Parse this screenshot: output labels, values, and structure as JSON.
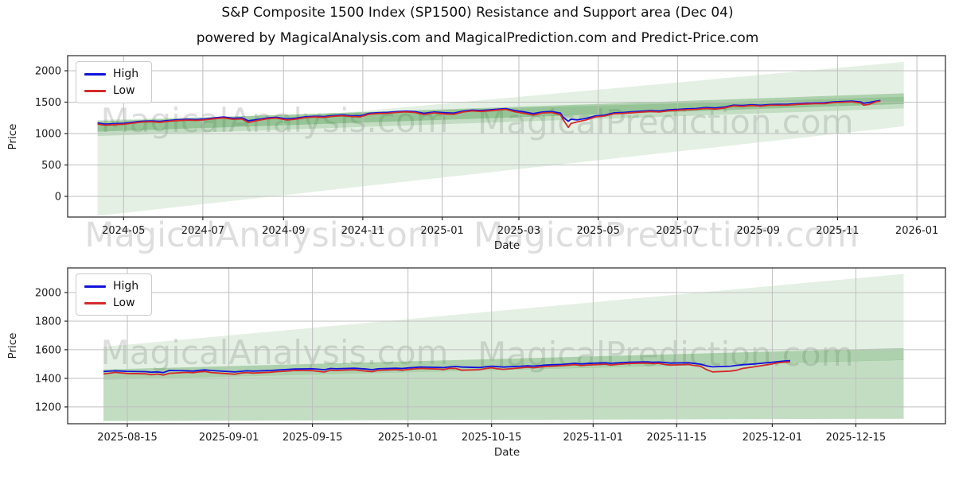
{
  "title": "S&P Composite 1500 Index (SP1500) Resistance and Support area (Dec 04)",
  "subtitle": "powered by MagicalAnalysis.com and MagicalPrediction.com and Predict-Price.com",
  "watermarks": {
    "analysis": "MagicalAnalysis.com",
    "prediction": "MagicalPrediction.com"
  },
  "colors": {
    "high": "#1212d9",
    "low": "#d42a2a",
    "band_green": "#2e8b2e",
    "grid": "#bfbfbf",
    "spine": "#262626",
    "tick_text": "#1a1a1a"
  },
  "chart_data": [
    {
      "type": "line",
      "title": "",
      "xlabel": "Date",
      "ylabel": "Price",
      "grid": true,
      "legend": {
        "position": "upper left",
        "entries": [
          "High",
          "Low"
        ]
      },
      "xlim": [
        "2024-03-19",
        "2026-01-23"
      ],
      "ylim": [
        -329,
        2240
      ],
      "yticks": [
        0,
        500,
        1000,
        1500,
        2000
      ],
      "xticks": [
        {
          "date": "2024-05-01",
          "label": "2024-05"
        },
        {
          "date": "2024-07-01",
          "label": "2024-07"
        },
        {
          "date": "2024-09-01",
          "label": "2024-09"
        },
        {
          "date": "2024-11-01",
          "label": "2024-11"
        },
        {
          "date": "2025-01-01",
          "label": "2025-01"
        },
        {
          "date": "2025-03-01",
          "label": "2025-03"
        },
        {
          "date": "2025-05-01",
          "label": "2025-05"
        },
        {
          "date": "2025-07-01",
          "label": "2025-07"
        },
        {
          "date": "2025-09-01",
          "label": "2025-09"
        },
        {
          "date": "2025-11-01",
          "label": "2025-11"
        },
        {
          "date": "2026-01-01",
          "label": "2026-01"
        }
      ],
      "dates": [
        "2024-04-11",
        "2024-04-17",
        "2024-04-24",
        "2024-05-01",
        "2024-05-08",
        "2024-05-15",
        "2024-05-22",
        "2024-05-29",
        "2024-06-05",
        "2024-06-12",
        "2024-06-19",
        "2024-06-26",
        "2024-07-03",
        "2024-07-10",
        "2024-07-17",
        "2024-07-24",
        "2024-07-31",
        "2024-08-05",
        "2024-08-12",
        "2024-08-19",
        "2024-08-26",
        "2024-09-04",
        "2024-09-11",
        "2024-09-18",
        "2024-09-25",
        "2024-10-02",
        "2024-10-09",
        "2024-10-16",
        "2024-10-23",
        "2024-10-30",
        "2024-11-06",
        "2024-11-13",
        "2024-11-20",
        "2024-11-27",
        "2024-12-04",
        "2024-12-11",
        "2024-12-18",
        "2024-12-26",
        "2025-01-03",
        "2025-01-10",
        "2025-01-17",
        "2025-01-24",
        "2025-01-31",
        "2025-02-07",
        "2025-02-14",
        "2025-02-19",
        "2025-02-26",
        "2025-03-05",
        "2025-03-12",
        "2025-03-19",
        "2025-03-26",
        "2025-04-02",
        "2025-04-04",
        "2025-04-08",
        "2025-04-10",
        "2025-04-15",
        "2025-04-22",
        "2025-04-29",
        "2025-05-06",
        "2025-05-13",
        "2025-05-20",
        "2025-05-27",
        "2025-06-03",
        "2025-06-10",
        "2025-06-17",
        "2025-06-24",
        "2025-07-01",
        "2025-07-08",
        "2025-07-15",
        "2025-07-23",
        "2025-07-30",
        "2025-08-06",
        "2025-08-13",
        "2025-08-20",
        "2025-08-27",
        "2025-09-03",
        "2025-09-10",
        "2025-09-17",
        "2025-09-24",
        "2025-10-01",
        "2025-10-08",
        "2025-10-15",
        "2025-10-22",
        "2025-10-29",
        "2025-11-05",
        "2025-11-12",
        "2025-11-19",
        "2025-11-21",
        "2025-11-25",
        "2025-12-01",
        "2025-12-04"
      ],
      "series": [
        {
          "name": "High",
          "color": "#1212d9",
          "values": [
            1168,
            1151,
            1158,
            1163,
            1179,
            1196,
            1201,
            1193,
            1209,
            1219,
            1227,
            1223,
            1233,
            1249,
            1263,
            1243,
            1249,
            1203,
            1223,
            1247,
            1259,
            1233,
            1247,
            1267,
            1275,
            1271,
            1285,
            1295,
            1285,
            1281,
            1323,
            1331,
            1337,
            1349,
            1357,
            1349,
            1323,
            1343,
            1331,
            1325,
            1357,
            1373,
            1367,
            1377,
            1389,
            1397,
            1365,
            1345,
            1317,
            1343,
            1351,
            1325,
            1259,
            1195,
            1227,
            1217,
            1243,
            1281,
            1293,
            1329,
            1335,
            1345,
            1355,
            1365,
            1359,
            1377,
            1385,
            1393,
            1399,
            1413,
            1407,
            1421,
            1452,
            1448,
            1458,
            1450,
            1462,
            1464,
            1467,
            1476,
            1483,
            1487,
            1489,
            1505,
            1510,
            1516,
            1502,
            1483,
            1493,
            1517,
            1526
          ]
        },
        {
          "name": "Low",
          "color": "#d42a2a",
          "values": [
            1150,
            1133,
            1141,
            1147,
            1165,
            1183,
            1188,
            1179,
            1196,
            1206,
            1214,
            1209,
            1220,
            1236,
            1249,
            1227,
            1233,
            1177,
            1207,
            1234,
            1247,
            1215,
            1231,
            1254,
            1263,
            1257,
            1273,
            1283,
            1271,
            1265,
            1309,
            1319,
            1323,
            1337,
            1345,
            1335,
            1303,
            1329,
            1313,
            1307,
            1343,
            1361,
            1351,
            1363,
            1377,
            1385,
            1347,
            1323,
            1295,
            1327,
            1335,
            1297,
            1223,
            1099,
            1159,
            1187,
            1219,
            1265,
            1279,
            1315,
            1321,
            1331,
            1341,
            1351,
            1343,
            1363,
            1371,
            1379,
            1385,
            1399,
            1389,
            1407,
            1440,
            1432,
            1446,
            1436,
            1450,
            1450,
            1453,
            1464,
            1471,
            1475,
            1476,
            1493,
            1499,
            1506,
            1486,
            1451,
            1463,
            1507,
            1517
          ]
        }
      ],
      "bands": [
        {
          "name": "resistance-support-outer-fan",
          "color": "#2e8b2e",
          "opacity": 0.13,
          "points": [
            [
              "2024-04-11",
              1160
            ],
            [
              "2024-09-15",
              1270
            ],
            [
              "2025-12-22",
              2140
            ],
            [
              "2025-12-22",
              1115
            ],
            [
              "2024-04-11",
              -310
            ]
          ]
        },
        {
          "name": "support-wedge",
          "color": "#2e8b2e",
          "opacity": 0.18,
          "points": [
            [
              "2024-04-11",
              1215
            ],
            [
              "2025-12-22",
              1585
            ],
            [
              "2025-12-22",
              1400
            ],
            [
              "2024-04-11",
              960
            ]
          ]
        },
        {
          "name": "core-band",
          "color": "#2e8b2e",
          "opacity": 0.3,
          "points": [
            [
              "2024-04-11",
              1195
            ],
            [
              "2025-12-22",
              1640
            ],
            [
              "2025-12-22",
              1470
            ],
            [
              "2024-04-11",
              1030
            ]
          ]
        }
      ]
    },
    {
      "type": "line",
      "title": "",
      "xlabel": "Date",
      "ylabel": "Price",
      "grid": true,
      "legend": {
        "position": "upper left",
        "entries": [
          "High",
          "Low"
        ]
      },
      "xlim": [
        "2025-08-05",
        "2025-12-30"
      ],
      "ylim": [
        1083,
        2172
      ],
      "yticks": [
        1200,
        1400,
        1600,
        1800,
        2000
      ],
      "xticks": [
        {
          "date": "2025-08-15",
          "label": "2025-08-15"
        },
        {
          "date": "2025-09-01",
          "label": "2025-09-01"
        },
        {
          "date": "2025-09-15",
          "label": "2025-09-15"
        },
        {
          "date": "2025-10-01",
          "label": "2025-10-01"
        },
        {
          "date": "2025-10-15",
          "label": "2025-10-15"
        },
        {
          "date": "2025-11-01",
          "label": "2025-11-01"
        },
        {
          "date": "2025-11-15",
          "label": "2025-11-15"
        },
        {
          "date": "2025-12-01",
          "label": "2025-12-01"
        },
        {
          "date": "2025-12-15",
          "label": "2025-12-15"
        }
      ],
      "dates": [
        "2025-08-11",
        "2025-08-12",
        "2025-08-13",
        "2025-08-14",
        "2025-08-15",
        "2025-08-18",
        "2025-08-19",
        "2025-08-20",
        "2025-08-21",
        "2025-08-22",
        "2025-08-25",
        "2025-08-26",
        "2025-08-27",
        "2025-08-28",
        "2025-08-29",
        "2025-09-02",
        "2025-09-03",
        "2025-09-04",
        "2025-09-05",
        "2025-09-08",
        "2025-09-09",
        "2025-09-10",
        "2025-09-11",
        "2025-09-12",
        "2025-09-15",
        "2025-09-16",
        "2025-09-17",
        "2025-09-18",
        "2025-09-19",
        "2025-09-22",
        "2025-09-23",
        "2025-09-24",
        "2025-09-25",
        "2025-09-26",
        "2025-09-29",
        "2025-09-30",
        "2025-10-01",
        "2025-10-02",
        "2025-10-03",
        "2025-10-06",
        "2025-10-07",
        "2025-10-08",
        "2025-10-09",
        "2025-10-10",
        "2025-10-13",
        "2025-10-14",
        "2025-10-15",
        "2025-10-16",
        "2025-10-17",
        "2025-10-20",
        "2025-10-21",
        "2025-10-22",
        "2025-10-23",
        "2025-10-24",
        "2025-10-27",
        "2025-10-28",
        "2025-10-29",
        "2025-10-30",
        "2025-10-31",
        "2025-11-03",
        "2025-11-04",
        "2025-11-05",
        "2025-11-06",
        "2025-11-07",
        "2025-11-10",
        "2025-11-11",
        "2025-11-12",
        "2025-11-13",
        "2025-11-14",
        "2025-11-17",
        "2025-11-18",
        "2025-11-19",
        "2025-11-20",
        "2025-11-21",
        "2025-11-24",
        "2025-11-25",
        "2025-11-26",
        "2025-11-28",
        "2025-12-01",
        "2025-12-02",
        "2025-12-03",
        "2025-12-04"
      ],
      "series": [
        {
          "name": "High",
          "color": "#1212d9",
          "values": [
            1448,
            1450,
            1453,
            1451,
            1449,
            1447,
            1443,
            1445,
            1440,
            1455,
            1453,
            1451,
            1456,
            1459,
            1455,
            1445,
            1449,
            1453,
            1451,
            1455,
            1458,
            1461,
            1463,
            1465,
            1467,
            1464,
            1460,
            1469,
            1467,
            1471,
            1468,
            1465,
            1461,
            1467,
            1471,
            1469,
            1473,
            1476,
            1479,
            1477,
            1475,
            1480,
            1483,
            1479,
            1476,
            1481,
            1485,
            1482,
            1479,
            1485,
            1488,
            1486,
            1489,
            1493,
            1498,
            1502,
            1505,
            1501,
            1504,
            1509,
            1505,
            1508,
            1511,
            1513,
            1515,
            1513,
            1514,
            1511,
            1507,
            1509,
            1504,
            1499,
            1487,
            1481,
            1485,
            1491,
            1495,
            1501,
            1513,
            1517,
            1521,
            1524
          ]
        },
        {
          "name": "Low",
          "color": "#d42a2a",
          "values": [
            1431,
            1436,
            1442,
            1438,
            1434,
            1432,
            1425,
            1430,
            1423,
            1435,
            1442,
            1439,
            1445,
            1448,
            1441,
            1429,
            1437,
            1441,
            1437,
            1443,
            1447,
            1449,
            1452,
            1455,
            1454,
            1449,
            1444,
            1457,
            1455,
            1460,
            1455,
            1451,
            1447,
            1456,
            1461,
            1457,
            1462,
            1466,
            1469,
            1465,
            1462,
            1470,
            1469,
            1457,
            1461,
            1469,
            1474,
            1467,
            1463,
            1474,
            1478,
            1474,
            1479,
            1483,
            1489,
            1493,
            1496,
            1489,
            1493,
            1499,
            1493,
            1498,
            1501,
            1504,
            1507,
            1503,
            1505,
            1497,
            1493,
            1497,
            1489,
            1484,
            1461,
            1445,
            1451,
            1457,
            1469,
            1481,
            1501,
            1509,
            1513,
            1516
          ]
        }
      ],
      "bands": [
        {
          "name": "resistance-support-outer-fan",
          "color": "#2e8b2e",
          "opacity": 0.13,
          "points": [
            [
              "2025-08-11",
              1620
            ],
            [
              "2025-12-23",
              2130
            ],
            [
              "2025-12-23",
              1118
            ],
            [
              "2025-08-11",
              1102
            ]
          ]
        },
        {
          "name": "support-wedge",
          "color": "#2e8b2e",
          "opacity": 0.18,
          "points": [
            [
              "2025-08-11",
              1390
            ],
            [
              "2025-12-23",
              1530
            ],
            [
              "2025-12-23",
              1118
            ],
            [
              "2025-08-11",
              1102
            ]
          ]
        },
        {
          "name": "core-band",
          "color": "#2e8b2e",
          "opacity": 0.3,
          "points": [
            [
              "2025-08-11",
              1462
            ],
            [
              "2025-12-23",
              1612
            ],
            [
              "2025-12-23",
              1528
            ],
            [
              "2025-08-11",
              1390
            ]
          ]
        }
      ]
    }
  ]
}
